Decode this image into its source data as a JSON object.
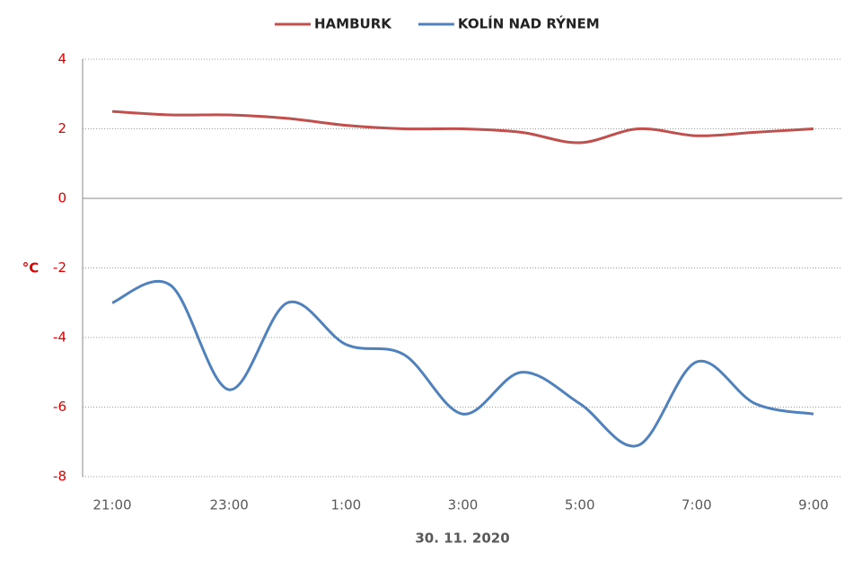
{
  "chart_data": {
    "type": "line",
    "x_label": "30. 11. 2020",
    "y_label": "°C",
    "categories": [
      "21:00",
      null,
      "23:00",
      null,
      "1:00",
      null,
      "3:00",
      null,
      "5:00",
      null,
      "7:00",
      null,
      "9:00"
    ],
    "series": [
      {
        "name": "HAMBURK",
        "color": "#c0504d",
        "values": [
          2.5,
          2.4,
          2.4,
          2.3,
          2.1,
          2.0,
          2.0,
          1.9,
          1.6,
          2.0,
          1.8,
          1.9,
          2.0
        ]
      },
      {
        "name": "KOLÍN NAD RÝNEM",
        "color": "#4f81bd",
        "values": [
          -3.0,
          -2.5,
          -5.5,
          -3.0,
          -4.2,
          -4.5,
          -6.2,
          -5.0,
          -5.9,
          -7.1,
          -4.7,
          -5.9,
          -6.2
        ]
      }
    ],
    "ylim": [
      -8,
      4
    ],
    "yticks": [
      -8,
      -6,
      -4,
      -2,
      0,
      2,
      4
    ],
    "grid": true,
    "smooth": true,
    "legend": "top"
  }
}
